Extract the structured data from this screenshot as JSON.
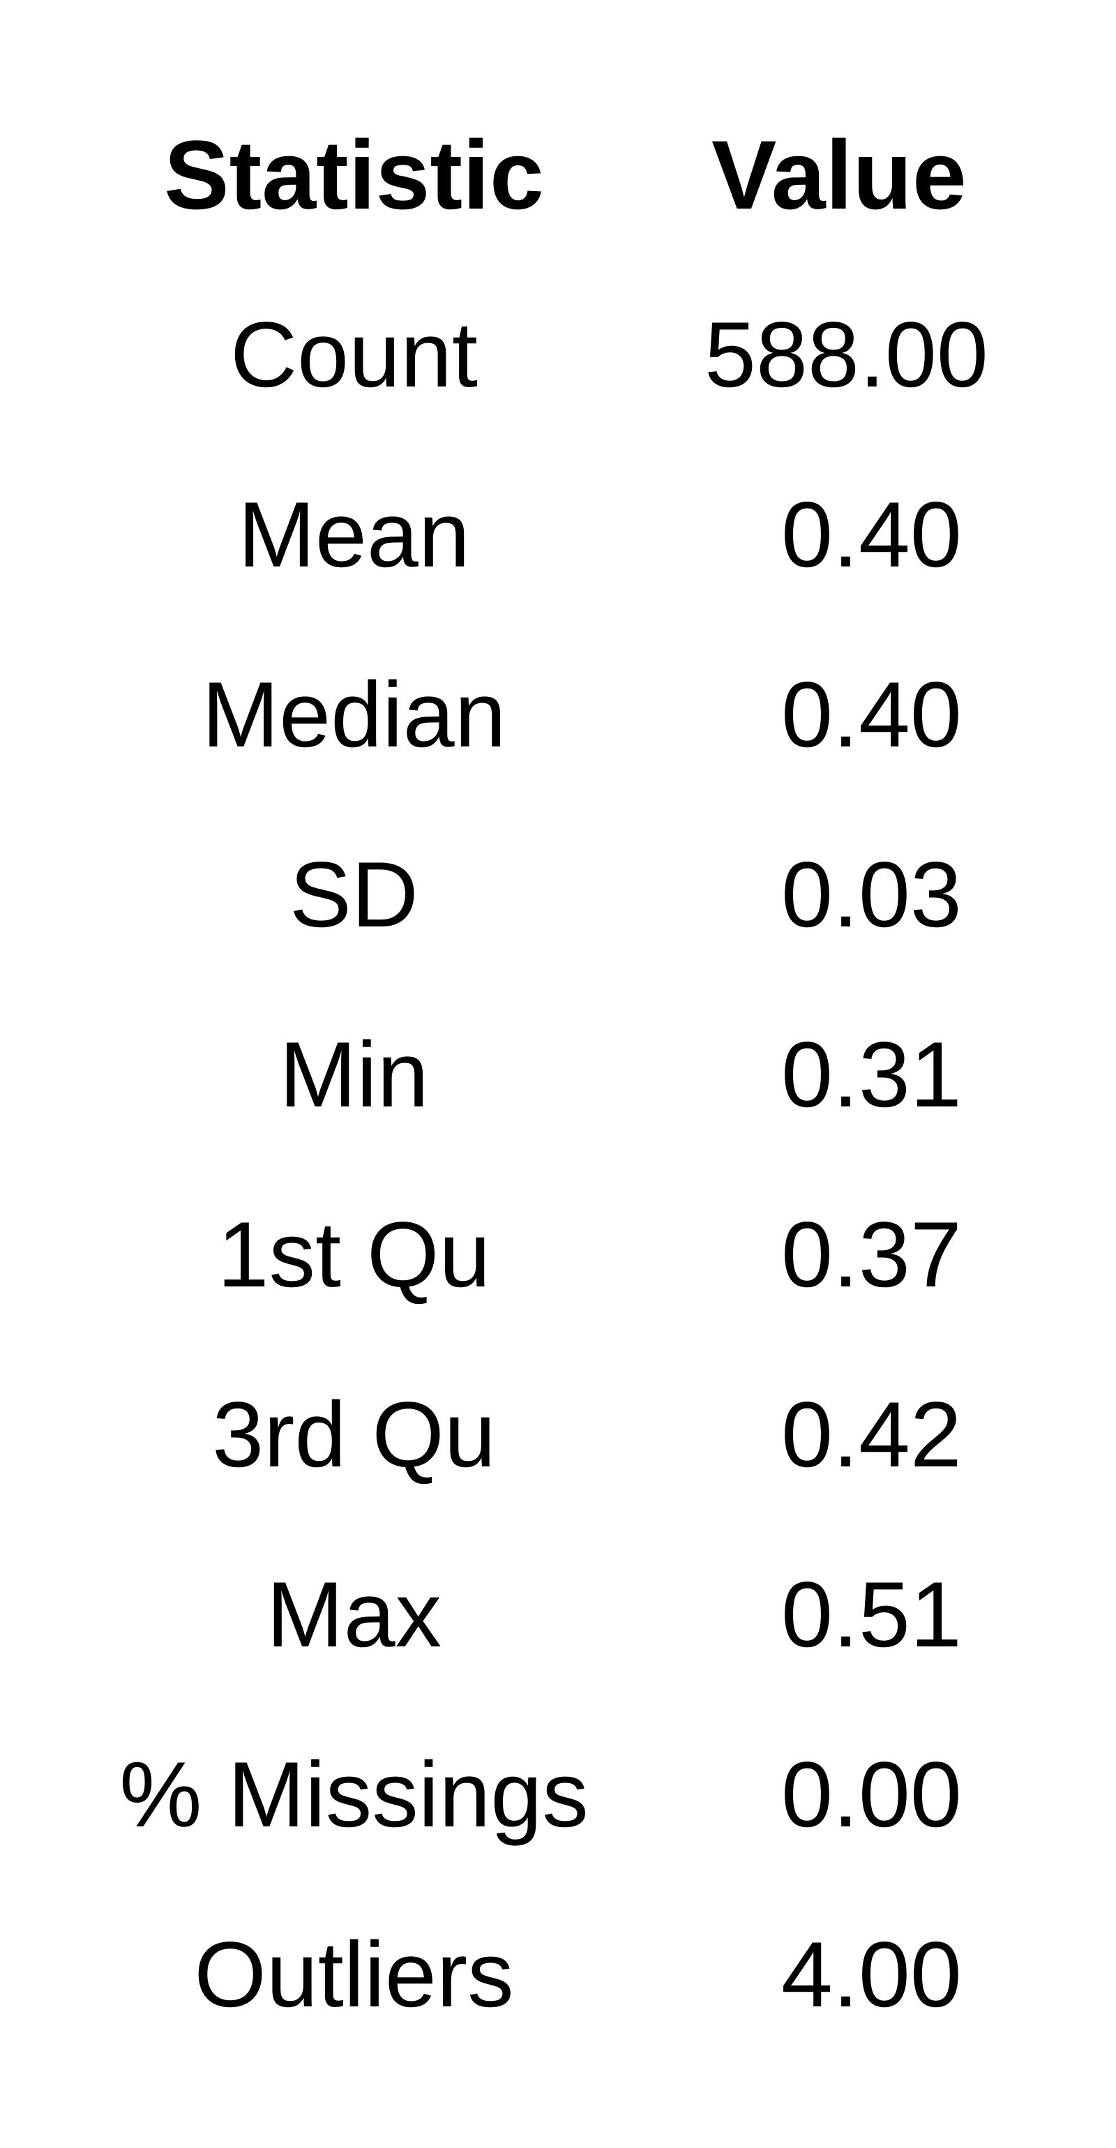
{
  "table": {
    "header": {
      "statistic": "Statistic",
      "value": "Value"
    },
    "rows": [
      {
        "statistic": "Count",
        "value": "588.00"
      },
      {
        "statistic": "Mean",
        "value": "0.40"
      },
      {
        "statistic": "Median",
        "value": "0.40"
      },
      {
        "statistic": "SD",
        "value": "0.03"
      },
      {
        "statistic": "Min",
        "value": "0.31"
      },
      {
        "statistic": "1st Qu",
        "value": "0.37"
      },
      {
        "statistic": "3rd Qu",
        "value": "0.42"
      },
      {
        "statistic": "Max",
        "value": "0.51"
      },
      {
        "statistic": "% Missings",
        "value": "0.00"
      },
      {
        "statistic": "Outliers",
        "value": "4.00"
      }
    ]
  }
}
